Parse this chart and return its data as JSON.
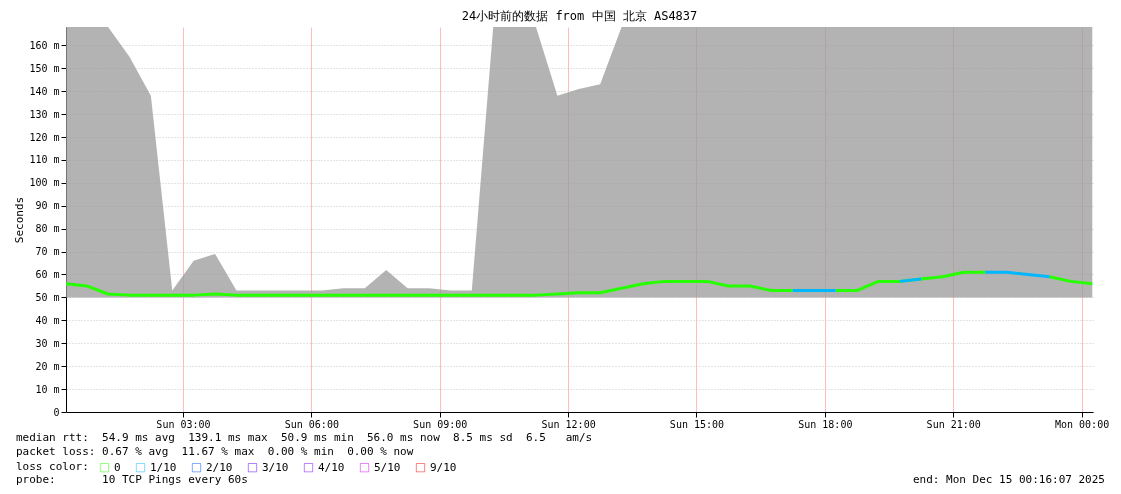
{
  "chart_data": {
    "type": "line",
    "title": "24小时前的数据 from 中国 北京 AS4837",
    "ylabel": "Seconds",
    "legend_title": "loss color:",
    "legend": "bottom",
    "grid": true,
    "line_style": "solid",
    "x": [
      "2025-12-14T00:16",
      "2025-12-14T00:45",
      "2025-12-14T01:15",
      "2025-12-14T01:45",
      "2025-12-14T02:15",
      "2025-12-14T02:45",
      "2025-12-14T03:15",
      "2025-12-14T03:45",
      "2025-12-14T04:15",
      "2025-12-14T04:45",
      "2025-12-14T05:15",
      "2025-12-14T05:45",
      "2025-12-14T06:15",
      "2025-12-14T06:45",
      "2025-12-14T07:15",
      "2025-12-14T07:45",
      "2025-12-14T08:15",
      "2025-12-14T08:45",
      "2025-12-14T09:15",
      "2025-12-14T09:45",
      "2025-12-14T10:15",
      "2025-12-14T10:45",
      "2025-12-14T11:15",
      "2025-12-14T11:45",
      "2025-12-14T12:15",
      "2025-12-14T12:45",
      "2025-12-14T13:15",
      "2025-12-14T13:45",
      "2025-12-14T14:15",
      "2025-12-14T14:45",
      "2025-12-14T15:15",
      "2025-12-14T15:45",
      "2025-12-14T16:15",
      "2025-12-14T16:45",
      "2025-12-14T17:15",
      "2025-12-14T17:45",
      "2025-12-14T18:15",
      "2025-12-14T18:45",
      "2025-12-14T19:15",
      "2025-12-14T19:45",
      "2025-12-14T20:15",
      "2025-12-14T20:45",
      "2025-12-14T21:15",
      "2025-12-14T21:45",
      "2025-12-14T22:15",
      "2025-12-14T22:45",
      "2025-12-14T23:15",
      "2025-12-14T23:45",
      "2025-12-15T00:15"
    ],
    "xlim": [
      "2025-12-14T00:16",
      "2025-12-15T00:16"
    ],
    "xticks": [
      {
        "value": "2025-12-14T03:00",
        "label": "Sun 03:00"
      },
      {
        "value": "2025-12-14T06:00",
        "label": "Sun 06:00"
      },
      {
        "value": "2025-12-14T09:00",
        "label": "Sun 09:00"
      },
      {
        "value": "2025-12-14T12:00",
        "label": "Sun 12:00"
      },
      {
        "value": "2025-12-14T15:00",
        "label": "Sun 15:00"
      },
      {
        "value": "2025-12-14T18:00",
        "label": "Sun 18:00"
      },
      {
        "value": "2025-12-14T21:00",
        "label": "Sun 21:00"
      },
      {
        "value": "2025-12-15T00:00",
        "label": "Mon 00:00"
      }
    ],
    "ylim": [
      0,
      168
    ],
    "yticks": [
      0,
      {
        "value": 10,
        "label": "10 m"
      },
      {
        "value": 20,
        "label": "20 m"
      },
      {
        "value": 30,
        "label": "30 m"
      },
      {
        "value": 40,
        "label": "40 m"
      },
      {
        "value": 50,
        "label": "50 m"
      },
      {
        "value": 60,
        "label": "60 m"
      },
      {
        "value": 70,
        "label": "70 m"
      },
      {
        "value": 80,
        "label": "80 m"
      },
      {
        "value": 90,
        "label": "90 m"
      },
      {
        "value": 100,
        "label": "100 m"
      },
      {
        "value": 110,
        "label": "110 m"
      },
      {
        "value": 120,
        "label": "120 m"
      },
      {
        "value": 130,
        "label": "130 m"
      },
      {
        "value": 140,
        "label": "140 m"
      },
      {
        "value": 150,
        "label": "150 m"
      },
      {
        "value": 160,
        "label": "160 m"
      }
    ],
    "series": [
      {
        "name": "0",
        "color": "#26ff00",
        "values": [
          56,
          55,
          51.5,
          51,
          51,
          51,
          51,
          51.5,
          51,
          51,
          51,
          51,
          51,
          51,
          51,
          51,
          51,
          51,
          51,
          51,
          51,
          51,
          51,
          51.5,
          52,
          52,
          54,
          56,
          57,
          57,
          57,
          55,
          55,
          53,
          53,
          null,
          53,
          53,
          57,
          57,
          58,
          59,
          61,
          61,
          null,
          null,
          59,
          57,
          56
        ],
        "lower": [
          50,
          50,
          50,
          50,
          50,
          50,
          50,
          50,
          50,
          50,
          50,
          50,
          50,
          50,
          50,
          50,
          50,
          50,
          50,
          50,
          50,
          50,
          50,
          50,
          50,
          50,
          50,
          50,
          50,
          50,
          50,
          50,
          50,
          50,
          50,
          50,
          50,
          50,
          50,
          50,
          50,
          50,
          50,
          50,
          50,
          50,
          50,
          50,
          50
        ],
        "upper": [
          168,
          168,
          168,
          155,
          138,
          53,
          66,
          69,
          53,
          53,
          53,
          53,
          53,
          54,
          54,
          62,
          54,
          54,
          53,
          53,
          168,
          168,
          168,
          138,
          141,
          143,
          168,
          168,
          168,
          168,
          168,
          168,
          168,
          168,
          168,
          168,
          168,
          168,
          168,
          168,
          168,
          168,
          168,
          168,
          168,
          168,
          168,
          168,
          168
        ]
      },
      {
        "name": "1/10",
        "color": "#00b8ff",
        "values": [
          null,
          null,
          null,
          null,
          null,
          null,
          null,
          null,
          null,
          null,
          null,
          null,
          null,
          null,
          null,
          null,
          null,
          null,
          null,
          null,
          null,
          null,
          null,
          null,
          null,
          null,
          null,
          null,
          null,
          null,
          null,
          null,
          null,
          null,
          53,
          53,
          53,
          null,
          null,
          57,
          58,
          null,
          null,
          61,
          61,
          60,
          59,
          null,
          null
        ]
      },
      {
        "name": "2/10",
        "color": "#0059ff",
        "values": [
          null,
          null,
          null,
          null,
          null,
          null,
          null,
          null,
          null,
          null,
          null,
          null,
          null,
          null,
          null,
          null,
          null,
          null,
          null,
          null,
          null,
          null,
          null,
          null,
          null,
          null,
          null,
          null,
          null,
          null,
          null,
          null,
          null,
          null,
          null,
          null,
          null,
          null,
          null,
          null,
          null,
          null,
          null,
          null,
          null,
          null,
          null,
          null,
          null
        ]
      },
      {
        "name": "3/10",
        "color": "#5e00ff",
        "values": [
          null,
          null,
          null,
          null,
          null,
          null,
          null,
          null,
          null,
          null,
          null,
          null,
          null,
          null,
          null,
          null,
          null,
          null,
          null,
          null,
          null,
          null,
          null,
          null,
          null,
          null,
          null,
          null,
          null,
          null,
          null,
          null,
          null,
          null,
          null,
          null,
          null,
          null,
          null,
          null,
          null,
          null,
          null,
          null,
          null,
          null,
          null,
          null,
          null
        ]
      },
      {
        "name": "4/10",
        "color": "#7e00ff",
        "values": [
          null,
          null,
          null,
          null,
          null,
          null,
          null,
          null,
          null,
          null,
          null,
          null,
          null,
          null,
          null,
          null,
          null,
          null,
          null,
          null,
          null,
          null,
          null,
          null,
          null,
          null,
          null,
          null,
          null,
          null,
          null,
          null,
          null,
          null,
          null,
          null,
          null,
          null,
          null,
          null,
          null,
          null,
          null,
          null,
          null,
          null,
          null,
          null,
          null
        ]
      },
      {
        "name": "5/10",
        "color": "#dd00ff",
        "values": [
          null,
          null,
          null,
          null,
          null,
          null,
          null,
          null,
          null,
          null,
          null,
          null,
          null,
          null,
          null,
          null,
          null,
          null,
          null,
          null,
          null,
          null,
          null,
          null,
          null,
          null,
          null,
          null,
          null,
          null,
          null,
          null,
          null,
          null,
          null,
          null,
          null,
          null,
          null,
          null,
          null,
          null,
          null,
          null,
          null,
          null,
          null,
          null,
          null
        ]
      },
      {
        "name": "9/10",
        "color": "#ff0000",
        "values": [
          null,
          null,
          null,
          null,
          null,
          null,
          null,
          null,
          null,
          null,
          null,
          null,
          null,
          null,
          null,
          null,
          null,
          null,
          null,
          null,
          null,
          null,
          null,
          null,
          null,
          null,
          null,
          null,
          null,
          null,
          null,
          null,
          null,
          null,
          null,
          null,
          null,
          null,
          null,
          null,
          null,
          null,
          null,
          null,
          null,
          null,
          null,
          null,
          null
        ]
      }
    ],
    "annotations": [
      "median rtt:  54.9 ms avg  139.1 ms max  50.9 ms min  56.0 ms now  8.5 ms sd  6.5   am/s",
      "packet loss: 0.67 % avg  11.67 % max  0.00 % min  0.00 % now",
      "probe:       10 TCP Pings every 60s",
      "end: Mon Dec 15 00:16:07 2025"
    ]
  }
}
